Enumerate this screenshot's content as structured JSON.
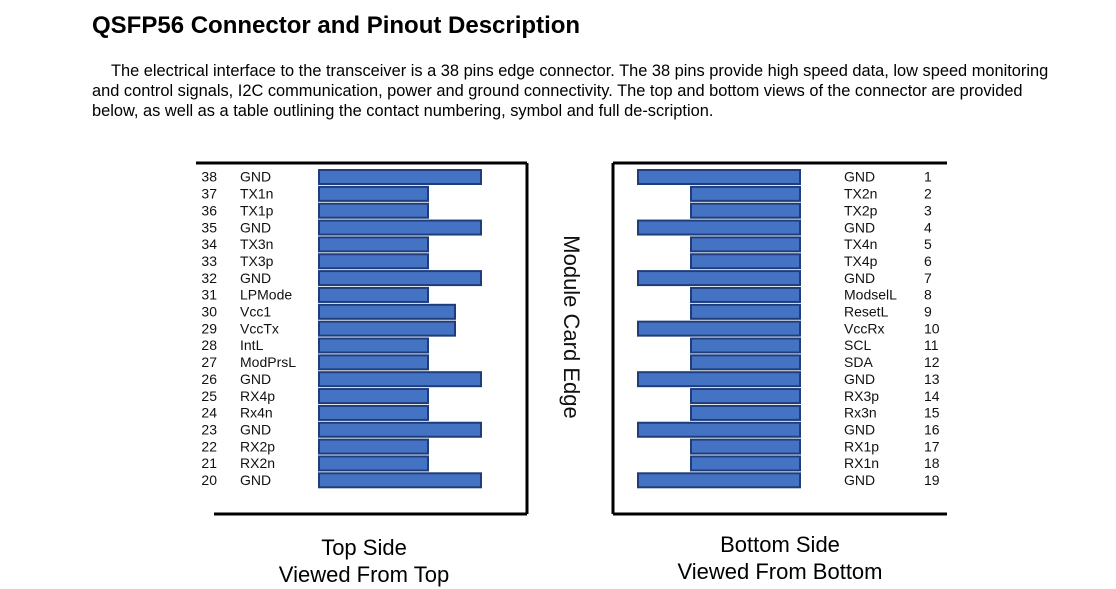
{
  "heading": "QSFP56 Connector and Pinout Description",
  "description": "The electrical interface to the transceiver is a 38 pins edge connector. The 38 pins provide high speed data, low speed monitoring and control signals, I2C communication, power and ground connectivity. The top and bottom views of the connector are provided below, as well as a table outlining the contact numbering, symbol and full de-scription.",
  "edge_label": "Module Card Edge",
  "pad_color": "#4573c4",
  "pad_border": "#1f3d7a",
  "top_side": {
    "caption_line1": "Top Side",
    "caption_line2": "Viewed From Top",
    "pins": [
      {
        "num": "38",
        "symbol": "GND",
        "pad": "long"
      },
      {
        "num": "37",
        "symbol": "TX1n",
        "pad": "short"
      },
      {
        "num": "36",
        "symbol": "TX1p",
        "pad": "short"
      },
      {
        "num": "35",
        "symbol": "GND",
        "pad": "long"
      },
      {
        "num": "34",
        "symbol": "TX3n",
        "pad": "short"
      },
      {
        "num": "33",
        "symbol": "TX3p",
        "pad": "short"
      },
      {
        "num": "32",
        "symbol": "GND",
        "pad": "long"
      },
      {
        "num": "31",
        "symbol": "LPMode",
        "pad": "short"
      },
      {
        "num": "30",
        "symbol": "Vcc1",
        "pad": "medium"
      },
      {
        "num": "29",
        "symbol": "VccTx",
        "pad": "medium"
      },
      {
        "num": "28",
        "symbol": "IntL",
        "pad": "short"
      },
      {
        "num": "27",
        "symbol": "ModPrsL",
        "pad": "short"
      },
      {
        "num": "26",
        "symbol": "GND",
        "pad": "long"
      },
      {
        "num": "25",
        "symbol": "RX4p",
        "pad": "short"
      },
      {
        "num": "24",
        "symbol": "Rx4n",
        "pad": "short"
      },
      {
        "num": "23",
        "symbol": "GND",
        "pad": "long"
      },
      {
        "num": "22",
        "symbol": "RX2p",
        "pad": "short"
      },
      {
        "num": "21",
        "symbol": "RX2n",
        "pad": "short"
      },
      {
        "num": "20",
        "symbol": "GND",
        "pad": "long"
      }
    ]
  },
  "bottom_side": {
    "caption_line1": "Bottom Side",
    "caption_line2": "Viewed From Bottom",
    "pins": [
      {
        "num": "1",
        "symbol": "GND",
        "pad": "long"
      },
      {
        "num": "2",
        "symbol": "TX2n",
        "pad": "short"
      },
      {
        "num": "3",
        "symbol": "TX2p",
        "pad": "short"
      },
      {
        "num": "4",
        "symbol": "GND",
        "pad": "long"
      },
      {
        "num": "5",
        "symbol": "TX4n",
        "pad": "short"
      },
      {
        "num": "6",
        "symbol": "TX4p",
        "pad": "short"
      },
      {
        "num": "7",
        "symbol": "GND",
        "pad": "long"
      },
      {
        "num": "8",
        "symbol": "ModselL",
        "pad": "short"
      },
      {
        "num": "9",
        "symbol": "ResetL",
        "pad": "short"
      },
      {
        "num": "10",
        "symbol": "VccRx",
        "pad": "long"
      },
      {
        "num": "11",
        "symbol": "SCL",
        "pad": "short"
      },
      {
        "num": "12",
        "symbol": "SDA",
        "pad": "short"
      },
      {
        "num": "13",
        "symbol": "GND",
        "pad": "long"
      },
      {
        "num": "14",
        "symbol": "RX3p",
        "pad": "short"
      },
      {
        "num": "15",
        "symbol": "Rx3n",
        "pad": "short"
      },
      {
        "num": "16",
        "symbol": "GND",
        "pad": "long"
      },
      {
        "num": "17",
        "symbol": "RX1p",
        "pad": "short"
      },
      {
        "num": "18",
        "symbol": "RX1n",
        "pad": "short"
      },
      {
        "num": "19",
        "symbol": "GND",
        "pad": "long"
      }
    ]
  }
}
